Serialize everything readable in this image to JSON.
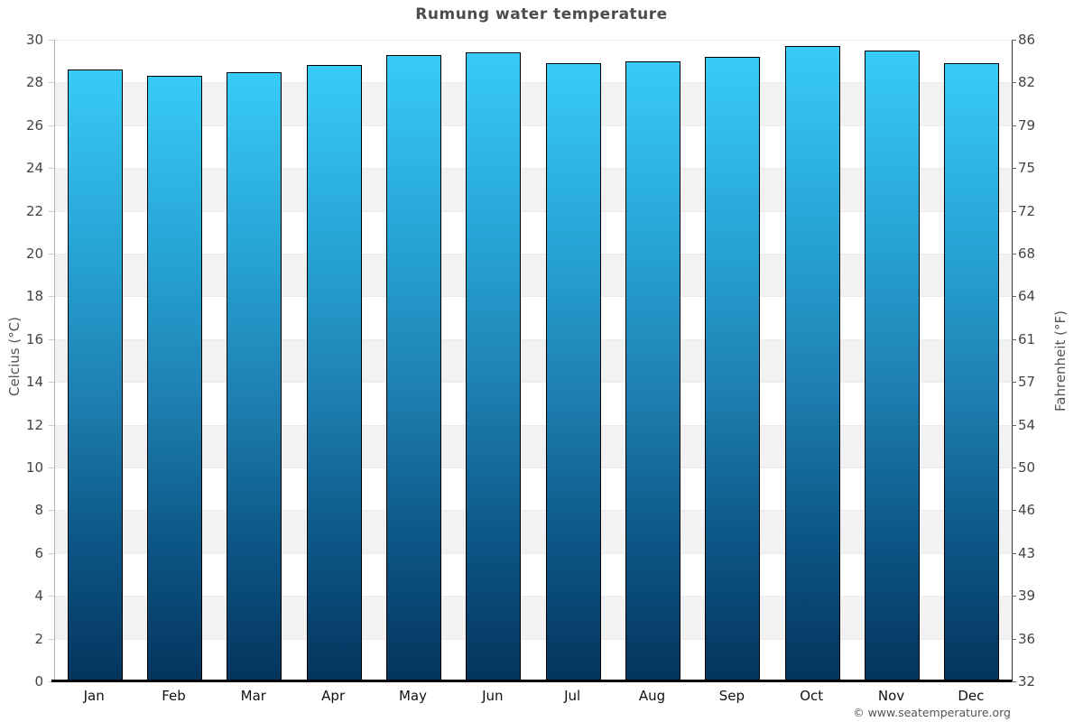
{
  "title": "Rumung water temperature",
  "copyright": "© www.seatemperature.org",
  "chart_data": {
    "type": "bar",
    "title": "Rumung water temperature",
    "categories": [
      "Jan",
      "Feb",
      "Mar",
      "Apr",
      "May",
      "Jun",
      "Jul",
      "Aug",
      "Sep",
      "Oct",
      "Nov",
      "Dec"
    ],
    "values": [
      28.6,
      28.3,
      28.5,
      28.8,
      29.3,
      29.4,
      28.9,
      29.0,
      29.2,
      29.7,
      29.5,
      28.9
    ],
    "unit": "°C",
    "ylabel_left": "Celcius (°C)",
    "ylabel_right": "Fahrenheit (°F)",
    "ylim": [
      0,
      30
    ],
    "ytick_step": 2,
    "celsius_ticks": [
      30,
      28,
      26,
      24,
      22,
      20,
      18,
      16,
      14,
      12,
      10,
      8,
      6,
      4,
      2,
      0
    ],
    "fahrenheit_ticks": [
      86,
      82,
      79,
      75,
      72,
      68,
      64,
      61,
      57,
      54,
      50,
      46,
      43,
      39,
      36,
      32
    ],
    "grid": "alternating horizontal bands every 2°C",
    "legend": "none",
    "colors": {
      "bar_gradient_top": "#38cbf7",
      "bar_gradient_mid": "#1e82b3",
      "bar_gradient_bottom": "#04345c",
      "bar_border": "#000000",
      "band_shade": "#f2f2f2",
      "band_plain": "#ffffff",
      "axis_left_line": "#b3b3b3",
      "axis_right_line": "#333333",
      "baseline": "#000000",
      "title_color": "#4d4d4d",
      "tick_label_color": "#444444",
      "month_label_color": "#111111",
      "copyright_color": "#555555"
    }
  }
}
